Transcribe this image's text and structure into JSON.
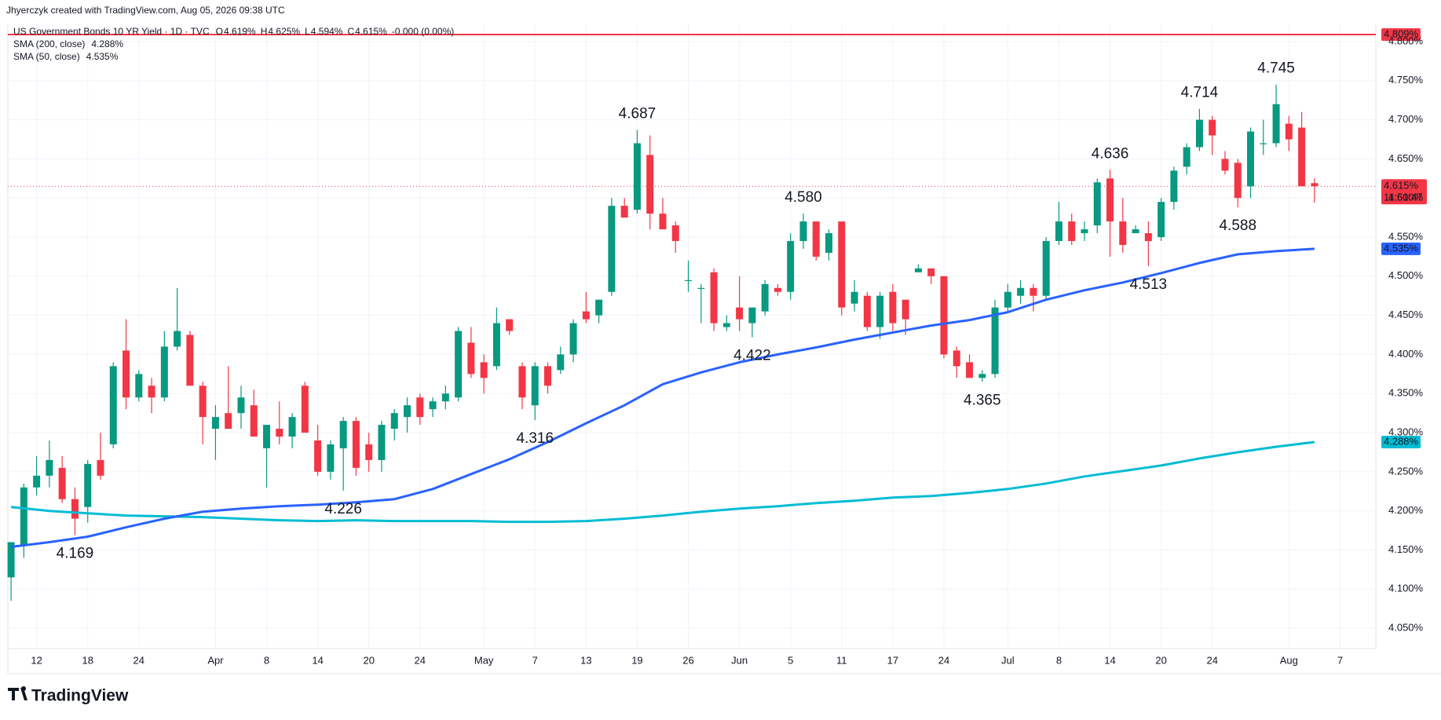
{
  "chart_data": {
    "type": "candlestick",
    "attribution": "Jhyerczyk created with TradingView.com, Aug 05, 2026 09:38 UTC",
    "title": "US Government Bonds 10 YR Yield · 1D · TVC",
    "ohlc_header": [
      {
        "key": "O",
        "label": "4.619%"
      },
      {
        "key": "H",
        "label": "4.625%"
      },
      {
        "key": "L",
        "label": "4.594%"
      },
      {
        "key": "C",
        "label": "4.615%"
      }
    ],
    "change_label": "-0.000 (0.00%)",
    "brand": "TradingView",
    "up_color": "#089981",
    "down_color": "#f23645",
    "grid": true,
    "candles": {
      "open": [
        4.115,
        4.155,
        4.23,
        4.245,
        4.255,
        4.215,
        4.205,
        4.265,
        4.285,
        4.405,
        4.345,
        4.36,
        4.345,
        4.41,
        4.425,
        4.36,
        4.305,
        4.325,
        4.325,
        4.335,
        4.28,
        4.305,
        4.295,
        4.36,
        4.29,
        4.25,
        4.28,
        4.315,
        4.285,
        4.265,
        4.305,
        4.32,
        4.345,
        4.33,
        4.34,
        4.345,
        4.415,
        4.39,
        4.385,
        4.445,
        4.385,
        4.335,
        4.385,
        4.38,
        4.4,
        4.455,
        4.45,
        4.48,
        4.59,
        4.585,
        4.655,
        4.58,
        4.565,
        4.495,
        4.485,
        4.505,
        4.435,
        4.46,
        4.44,
        4.455,
        4.485,
        4.48,
        4.545,
        4.57,
        4.53,
        4.57,
        4.465,
        4.475,
        4.435,
        4.48,
        4.47,
        4.505,
        4.51,
        4.5,
        4.405,
        4.39,
        4.37,
        4.375,
        4.46,
        4.475,
        4.485,
        4.475,
        4.545,
        4.57,
        4.555,
        4.565,
        4.625,
        4.57,
        4.555,
        4.555,
        4.55,
        4.595,
        4.64,
        4.665,
        4.7,
        4.65,
        4.645,
        4.615,
        4.67,
        4.67,
        4.695,
        4.69,
        4.619
      ],
      "high": [
        4.16,
        4.235,
        4.27,
        4.29,
        4.27,
        4.23,
        4.265,
        4.3,
        4.39,
        4.445,
        4.38,
        4.37,
        4.43,
        4.485,
        4.43,
        4.365,
        4.335,
        4.385,
        4.36,
        4.355,
        4.31,
        4.34,
        4.325,
        4.365,
        4.31,
        4.29,
        4.32,
        4.32,
        4.3,
        4.315,
        4.33,
        4.345,
        4.35,
        4.345,
        4.36,
        4.435,
        4.435,
        4.4,
        4.46,
        4.445,
        4.39,
        4.39,
        4.39,
        4.41,
        4.445,
        4.48,
        4.47,
        4.6,
        4.6,
        4.687,
        4.68,
        4.6,
        4.57,
        4.52,
        4.49,
        4.51,
        4.45,
        4.5,
        4.46,
        4.495,
        4.49,
        4.555,
        4.58,
        4.57,
        4.56,
        4.57,
        4.495,
        4.48,
        4.48,
        4.49,
        4.47,
        4.515,
        4.51,
        4.5,
        4.41,
        4.4,
        4.38,
        4.47,
        4.49,
        4.495,
        4.49,
        4.55,
        4.595,
        4.58,
        4.57,
        4.625,
        4.636,
        4.6,
        4.565,
        4.57,
        4.6,
        4.64,
        4.67,
        4.714,
        4.705,
        4.66,
        4.65,
        4.69,
        4.7,
        4.745,
        4.705,
        4.71,
        4.625
      ],
      "low": [
        4.085,
        4.14,
        4.22,
        4.23,
        4.21,
        4.169,
        4.185,
        4.24,
        4.28,
        4.33,
        4.34,
        4.325,
        4.34,
        4.405,
        4.36,
        4.285,
        4.265,
        4.31,
        4.305,
        4.295,
        4.23,
        4.285,
        4.28,
        4.3,
        4.245,
        4.24,
        4.226,
        4.245,
        4.25,
        4.25,
        4.29,
        4.3,
        4.31,
        4.32,
        4.33,
        4.34,
        4.37,
        4.35,
        4.38,
        4.425,
        4.33,
        4.316,
        4.35,
        4.375,
        4.39,
        4.44,
        4.44,
        4.475,
        4.58,
        4.58,
        4.56,
        4.56,
        4.53,
        4.48,
        4.44,
        4.43,
        4.43,
        4.43,
        4.422,
        4.45,
        4.475,
        4.47,
        4.535,
        4.52,
        4.52,
        4.45,
        4.455,
        4.43,
        4.42,
        4.43,
        4.425,
        4.505,
        4.49,
        4.395,
        4.37,
        4.37,
        4.365,
        4.37,
        4.455,
        4.465,
        4.455,
        4.47,
        4.54,
        4.54,
        4.545,
        4.555,
        4.525,
        4.53,
        4.555,
        4.513,
        4.545,
        4.585,
        4.63,
        4.66,
        4.655,
        4.63,
        4.588,
        4.6,
        4.655,
        4.665,
        4.66,
        4.615,
        4.594
      ],
      "close": [
        4.16,
        4.23,
        4.245,
        4.265,
        4.215,
        4.19,
        4.26,
        4.245,
        4.385,
        4.345,
        4.375,
        4.345,
        4.41,
        4.43,
        4.36,
        4.32,
        4.32,
        4.305,
        4.345,
        4.295,
        4.31,
        4.295,
        4.32,
        4.3,
        4.25,
        4.285,
        4.315,
        4.255,
        4.265,
        4.31,
        4.325,
        4.335,
        4.32,
        4.34,
        4.35,
        4.43,
        4.375,
        4.37,
        4.44,
        4.43,
        4.345,
        4.385,
        4.36,
        4.4,
        4.44,
        4.445,
        4.47,
        4.59,
        4.575,
        4.67,
        4.58,
        4.56,
        4.545,
        4.495,
        4.485,
        4.44,
        4.44,
        4.445,
        4.46,
        4.49,
        4.48,
        4.545,
        4.57,
        4.525,
        4.555,
        4.46,
        4.48,
        4.435,
        4.475,
        4.44,
        4.445,
        4.51,
        4.5,
        4.4,
        4.385,
        4.37,
        4.375,
        4.46,
        4.48,
        4.485,
        4.475,
        4.545,
        4.57,
        4.545,
        4.56,
        4.62,
        4.57,
        4.54,
        4.56,
        4.545,
        4.595,
        4.635,
        4.665,
        4.7,
        4.68,
        4.635,
        4.6,
        4.685,
        4.67,
        4.72,
        4.675,
        4.615,
        4.615
      ]
    },
    "series": [
      {
        "name": "SMA (200, close)",
        "color": "#00bcd4",
        "last_label": "4.288%",
        "x": [
          0,
          3,
          6,
          9,
          12,
          15,
          18,
          21,
          24,
          27,
          30,
          33,
          36,
          39,
          42,
          45,
          48,
          51,
          54,
          57,
          60,
          63,
          66,
          69,
          72,
          75,
          78,
          81,
          84,
          87,
          90,
          93,
          96,
          99,
          102
        ],
        "values": [
          4.205,
          4.2,
          4.197,
          4.194,
          4.193,
          4.192,
          4.19,
          4.188,
          4.187,
          4.188,
          4.187,
          4.187,
          4.187,
          4.186,
          4.186,
          4.187,
          4.19,
          4.194,
          4.199,
          4.203,
          4.206,
          4.21,
          4.213,
          4.217,
          4.219,
          4.223,
          4.228,
          4.235,
          4.244,
          4.251,
          4.258,
          4.267,
          4.275,
          4.282,
          4.288
        ]
      },
      {
        "name": "SMA (50, close)",
        "color": "#2962ff",
        "last_label": "4.535%",
        "x": [
          0,
          3,
          6,
          9,
          12,
          15,
          18,
          21,
          24,
          27,
          30,
          33,
          36,
          39,
          42,
          45,
          48,
          51,
          54,
          57,
          60,
          63,
          66,
          69,
          72,
          75,
          78,
          81,
          84,
          87,
          90,
          93,
          96,
          99,
          102
        ],
        "values": [
          4.154,
          4.16,
          4.167,
          4.179,
          4.19,
          4.199,
          4.203,
          4.206,
          4.208,
          4.211,
          4.215,
          4.228,
          4.247,
          4.266,
          4.288,
          4.312,
          4.335,
          4.362,
          4.377,
          4.39,
          4.4,
          4.409,
          4.419,
          4.428,
          4.437,
          4.444,
          4.454,
          4.47,
          4.482,
          4.492,
          4.504,
          4.517,
          4.528,
          4.532,
          4.535
        ]
      }
    ],
    "annotations": [
      {
        "x": 5,
        "value": 4.169,
        "label": "4.169",
        "side": "below"
      },
      {
        "x": 26,
        "value": 4.226,
        "label": "4.226",
        "side": "below"
      },
      {
        "x": 41,
        "value": 4.316,
        "label": "4.316",
        "side": "below"
      },
      {
        "x": 49,
        "value": 4.687,
        "label": "4.687",
        "side": "above"
      },
      {
        "x": 58,
        "value": 4.422,
        "label": "4.422",
        "side": "below"
      },
      {
        "x": 62,
        "value": 4.58,
        "label": "4.580",
        "side": "above"
      },
      {
        "x": 76,
        "value": 4.365,
        "label": "4.365",
        "side": "below"
      },
      {
        "x": 86,
        "value": 4.636,
        "label": "4.636",
        "side": "above"
      },
      {
        "x": 89,
        "value": 4.513,
        "label": "4.513",
        "side": "below"
      },
      {
        "x": 93,
        "value": 4.714,
        "label": "4.714",
        "side": "above"
      },
      {
        "x": 96,
        "value": 4.588,
        "label": "4.588",
        "side": "below"
      },
      {
        "x": 99,
        "value": 4.745,
        "label": "4.745",
        "side": "above"
      }
    ],
    "price_line": {
      "value": 4.809,
      "label": "4.809%",
      "color": "#f23645"
    },
    "last_price": {
      "value": 4.615,
      "label": "4.615%",
      "countdown": "11:51:47",
      "color": "#f23645"
    },
    "xlim": [
      -0.25,
      106.8
    ],
    "xticks": [
      {
        "value": 2,
        "label": "12"
      },
      {
        "value": 6,
        "label": "18"
      },
      {
        "value": 10,
        "label": "24"
      },
      {
        "value": 16,
        "label": "Apr"
      },
      {
        "value": 20,
        "label": "8"
      },
      {
        "value": 24,
        "label": "14"
      },
      {
        "value": 28,
        "label": "20"
      },
      {
        "value": 32,
        "label": "24"
      },
      {
        "value": 37,
        "label": "May"
      },
      {
        "value": 41,
        "label": "7"
      },
      {
        "value": 45,
        "label": "13"
      },
      {
        "value": 49,
        "label": "19"
      },
      {
        "value": 53,
        "label": "26"
      },
      {
        "value": 57,
        "label": "Jun"
      },
      {
        "value": 61,
        "label": "5"
      },
      {
        "value": 65,
        "label": "11"
      },
      {
        "value": 69,
        "label": "17"
      },
      {
        "value": 73,
        "label": "24"
      },
      {
        "value": 78,
        "label": "Jul"
      },
      {
        "value": 82,
        "label": "8"
      },
      {
        "value": 86,
        "label": "14"
      },
      {
        "value": 90,
        "label": "20"
      },
      {
        "value": 94,
        "label": "24"
      },
      {
        "value": 100,
        "label": "Aug"
      },
      {
        "value": 104,
        "label": "7"
      }
    ],
    "ylim": [
      4.024,
      4.816
    ],
    "yticks": [
      {
        "value": 4.05,
        "label": "4.050%"
      },
      {
        "value": 4.1,
        "label": "4.100%"
      },
      {
        "value": 4.15,
        "label": "4.150%"
      },
      {
        "value": 4.2,
        "label": "4.200%"
      },
      {
        "value": 4.25,
        "label": "4.250%"
      },
      {
        "value": 4.3,
        "label": "4.300%"
      },
      {
        "value": 4.35,
        "label": "4.350%"
      },
      {
        "value": 4.4,
        "label": "4.400%"
      },
      {
        "value": 4.45,
        "label": "4.450%"
      },
      {
        "value": 4.5,
        "label": "4.500%"
      },
      {
        "value": 4.55,
        "label": "4.550%"
      },
      {
        "value": 4.6,
        "label": "4.600%"
      },
      {
        "value": 4.65,
        "label": "4.650%"
      },
      {
        "value": 4.7,
        "label": "4.700%"
      },
      {
        "value": 4.75,
        "label": "4.750%"
      },
      {
        "value": 4.8,
        "label": "4.800%"
      }
    ]
  }
}
